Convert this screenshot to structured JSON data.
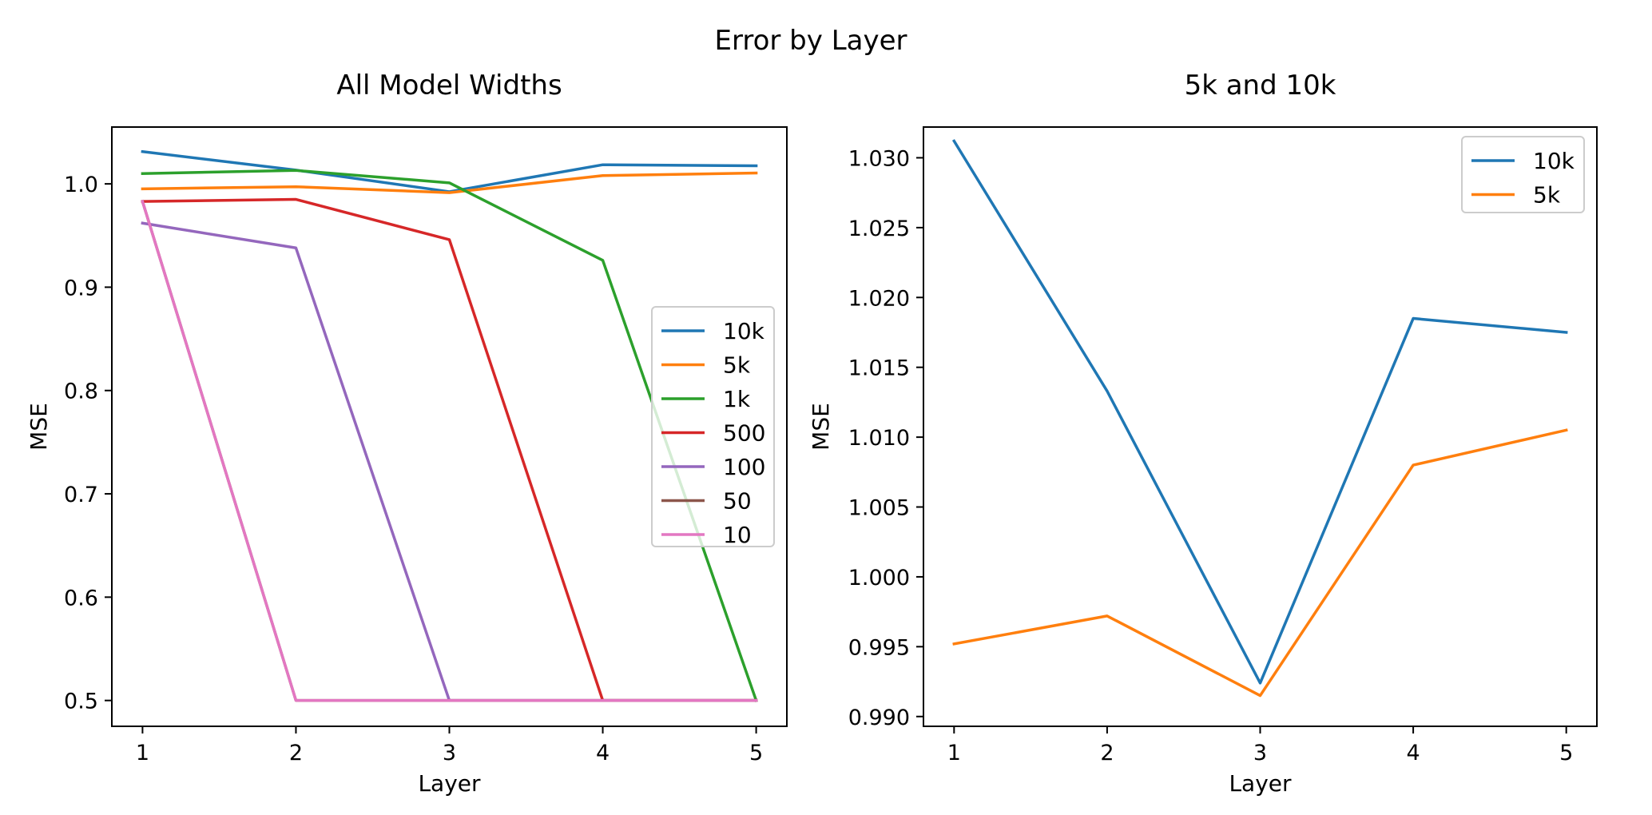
{
  "figure": {
    "suptitle": "Error by Layer"
  },
  "chart_data": [
    {
      "type": "line",
      "title": "All Model Widths",
      "xlabel": "Layer",
      "ylabel": "MSE",
      "x": [
        1,
        2,
        3,
        4,
        5
      ],
      "xlim": [
        0.8,
        5.2
      ],
      "ylim": [
        0.475,
        1.055
      ],
      "xticks": [
        1,
        2,
        3,
        4,
        5
      ],
      "yticks": [
        0.5,
        0.6,
        0.7,
        0.8,
        0.9,
        1.0
      ],
      "ytick_labels": [
        "0.5",
        "0.6",
        "0.7",
        "0.8",
        "0.9",
        "1.0"
      ],
      "legend_position": "center-right",
      "series": [
        {
          "name": "10k",
          "color": "#1f77b4",
          "values": [
            1.0312,
            1.0133,
            0.9924,
            1.0185,
            1.0175
          ]
        },
        {
          "name": "5k",
          "color": "#ff7f0e",
          "values": [
            0.9952,
            0.9972,
            0.9915,
            1.008,
            1.0105
          ]
        },
        {
          "name": "1k",
          "color": "#2ca02c",
          "values": [
            1.01,
            1.013,
            1.001,
            0.926,
            0.5
          ]
        },
        {
          "name": "500",
          "color": "#d62728",
          "values": [
            0.983,
            0.985,
            0.946,
            0.5,
            0.5
          ]
        },
        {
          "name": "100",
          "color": "#9467bd",
          "values": [
            0.962,
            0.938,
            0.5,
            0.5,
            0.5
          ]
        },
        {
          "name": "50",
          "color": "#8c564b",
          "values": [
            0.983,
            0.5,
            0.5,
            0.5,
            0.5
          ]
        },
        {
          "name": "10",
          "color": "#e377c2",
          "values": [
            0.983,
            0.5,
            0.5,
            0.5,
            0.5
          ]
        }
      ]
    },
    {
      "type": "line",
      "title": "5k and 10k",
      "xlabel": "Layer",
      "ylabel": "MSE",
      "x": [
        1,
        2,
        3,
        4,
        5
      ],
      "xlim": [
        0.8,
        5.2
      ],
      "ylim": [
        0.9893,
        1.0322
      ],
      "xticks": [
        1,
        2,
        3,
        4,
        5
      ],
      "yticks": [
        0.99,
        0.995,
        1.0,
        1.005,
        1.01,
        1.015,
        1.02,
        1.025,
        1.03
      ],
      "ytick_labels": [
        "0.990",
        "0.995",
        "1.000",
        "1.005",
        "1.010",
        "1.015",
        "1.020",
        "1.025",
        "1.030"
      ],
      "legend_position": "upper-right",
      "series": [
        {
          "name": "10k",
          "color": "#1f77b4",
          "values": [
            1.0312,
            1.0133,
            0.9924,
            1.0185,
            1.0175
          ]
        },
        {
          "name": "5k",
          "color": "#ff7f0e",
          "values": [
            0.9952,
            0.9972,
            0.9915,
            1.008,
            1.0105
          ]
        }
      ]
    }
  ]
}
